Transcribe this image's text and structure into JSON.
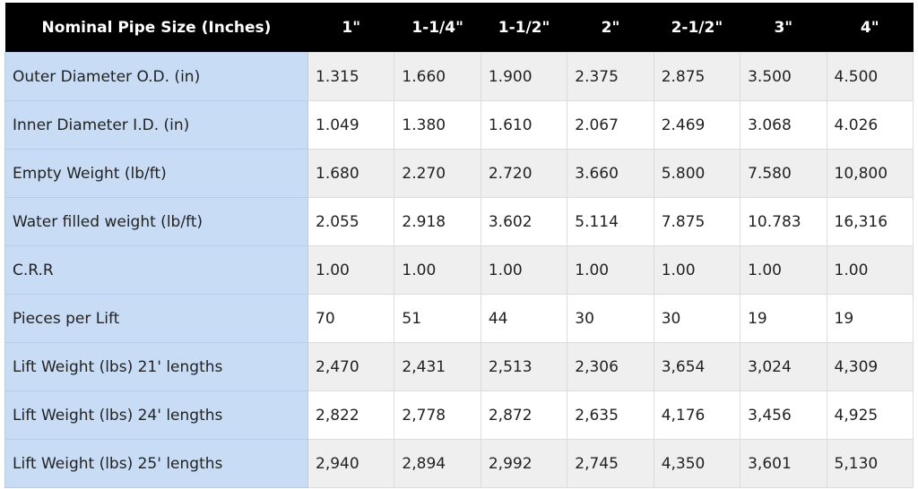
{
  "table": {
    "headers": [
      "Nominal Pipe Size (Inches)",
      "1\"",
      "1-1/4\"",
      "1-1/2\"",
      "2\"",
      "2-1/2\"",
      "3\"",
      "4\""
    ],
    "rows": [
      {
        "label": "Outer Diameter O.D. (in)",
        "values": [
          "1.315",
          "1.660",
          "1.900",
          "2.375",
          "2.875",
          "3.500",
          "4.500"
        ]
      },
      {
        "label": "Inner Diameter I.D. (in)",
        "values": [
          "1.049",
          "1.380",
          "1.610",
          "2.067",
          "2.469",
          "3.068",
          "4.026"
        ]
      },
      {
        "label": "Empty Weight (lb/ft)",
        "values": [
          "1.680",
          "2.270",
          "2.720",
          "3.660",
          "5.800",
          "7.580",
          "10,800"
        ]
      },
      {
        "label": "Water filled weight (lb/ft)",
        "values": [
          "2.055",
          "2.918",
          "3.602",
          "5.114",
          "7.875",
          "10.783",
          "16,316"
        ]
      },
      {
        "label": "C.R.R",
        "values": [
          "1.00",
          "1.00",
          "1.00",
          "1.00",
          "1.00",
          "1.00",
          "1.00"
        ]
      },
      {
        "label": "Pieces per Lift",
        "values": [
          "70",
          "51",
          "44",
          "30",
          "30",
          "19",
          "19"
        ]
      },
      {
        "label": "Lift Weight (lbs) 21' lengths",
        "values": [
          "2,470",
          "2,431",
          "2,513",
          "2,306",
          "3,654",
          "3,024",
          "4,309"
        ]
      },
      {
        "label": "Lift Weight (lbs) 24' lengths",
        "values": [
          "2,822",
          "2,778",
          "2,872",
          "2,635",
          "4,176",
          "3,456",
          "4,925"
        ]
      },
      {
        "label": "Lift Weight (lbs) 25' lengths",
        "values": [
          "2,940",
          "2,894",
          "2,992",
          "2,745",
          "4,350",
          "3,601",
          "5,130"
        ]
      }
    ]
  },
  "colors": {
    "header_bg": "#000000",
    "label_bg": "#c9dcf5",
    "stripe_bg": "#efefef"
  }
}
